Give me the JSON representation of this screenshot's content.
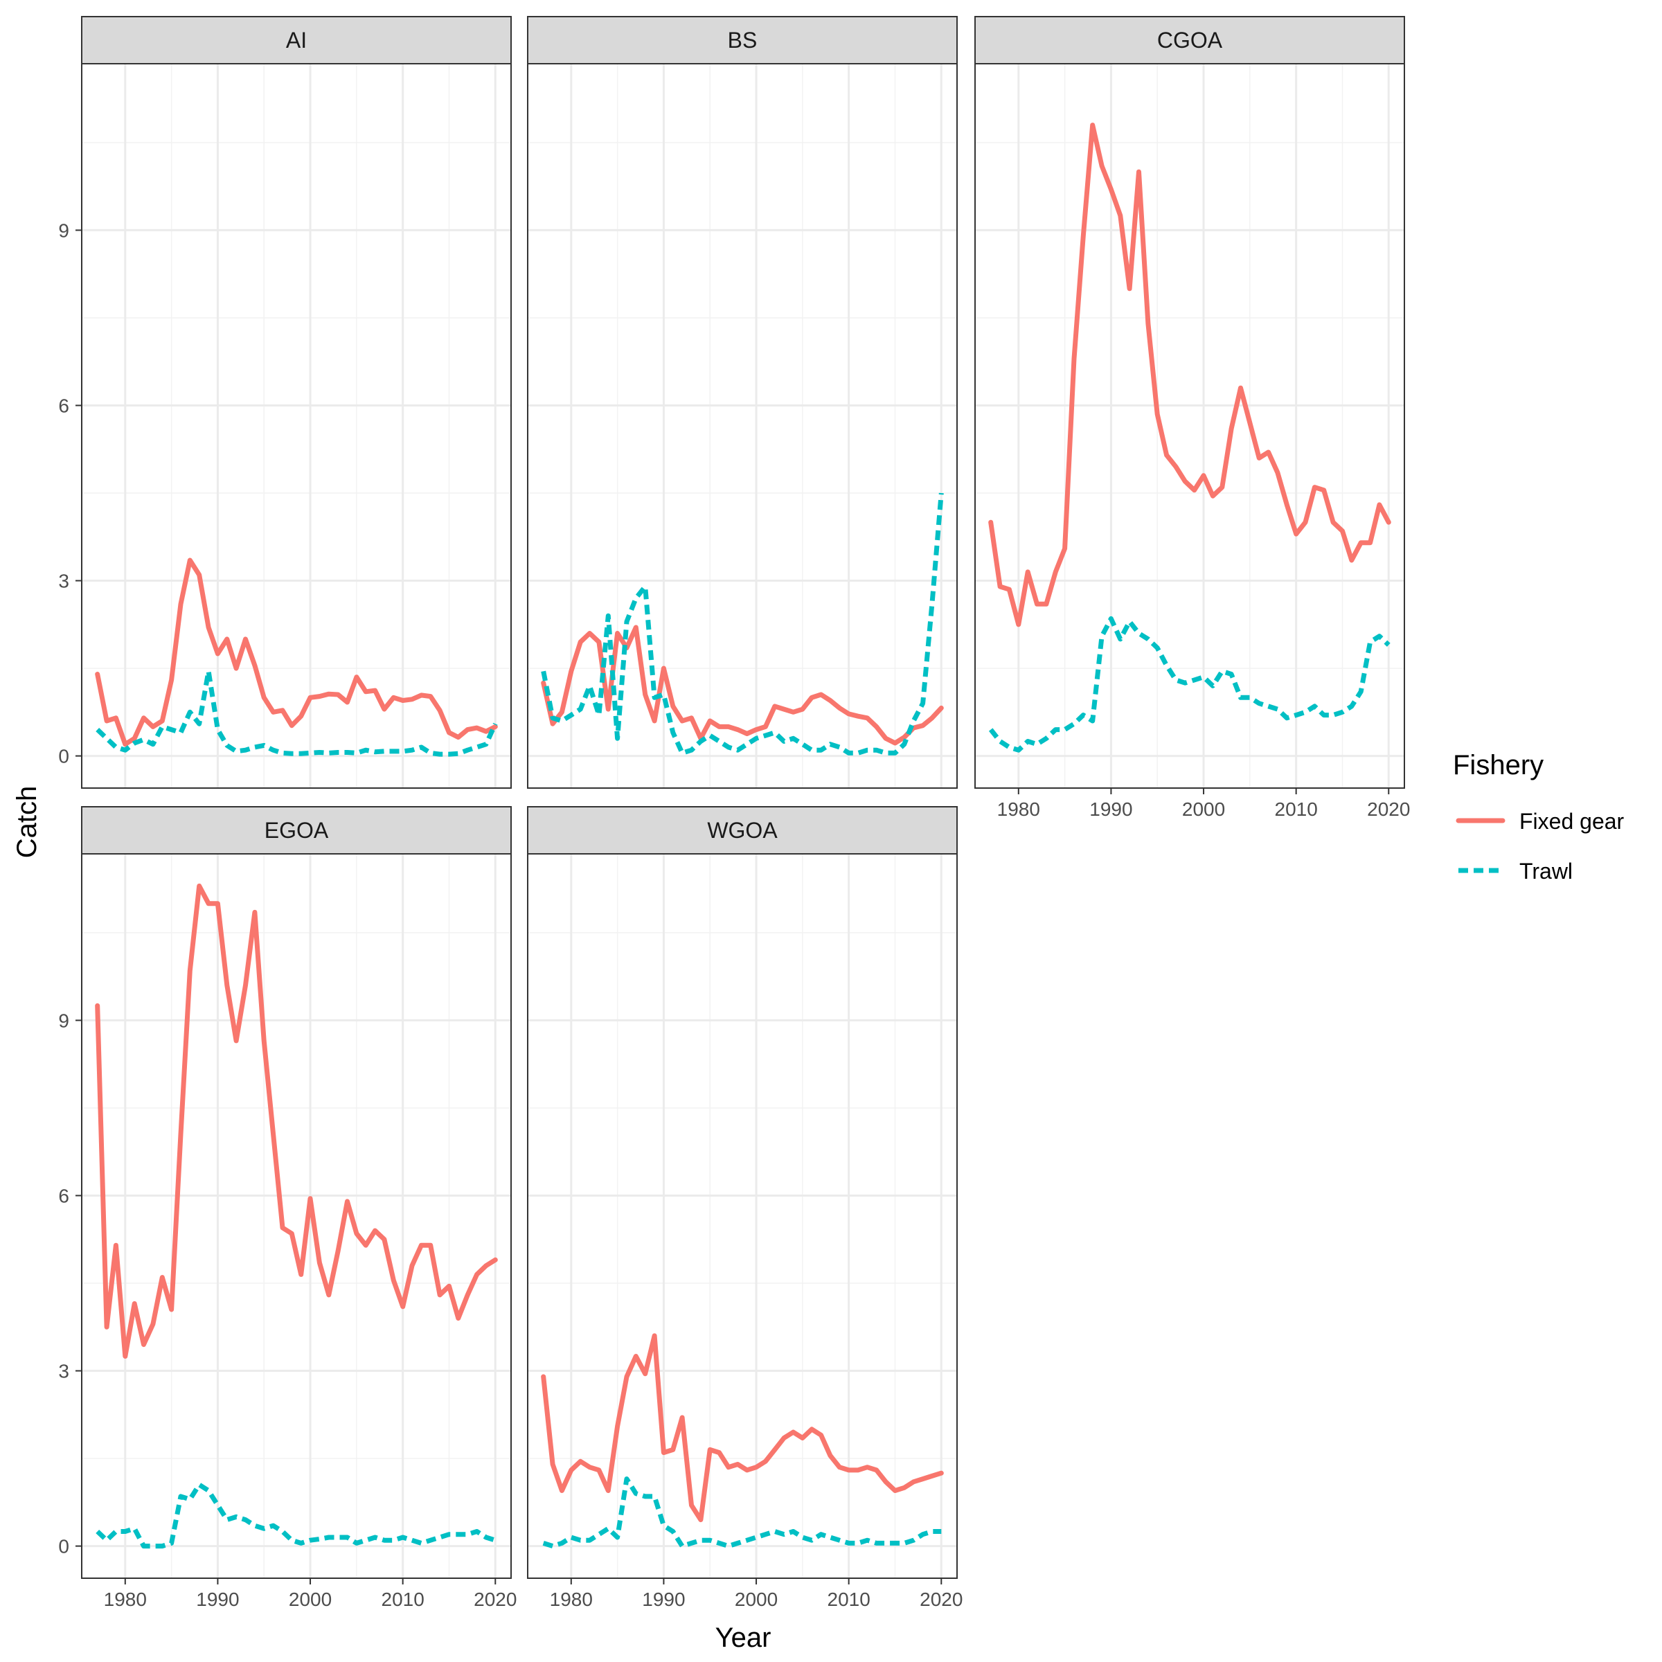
{
  "chart_data": {
    "type": "line",
    "xlabel": "Year",
    "ylabel": "Catch",
    "xlim": [
      1975.3,
      2021.7
    ],
    "ylim": [
      -0.55,
      11.85
    ],
    "x_ticks": [
      1980,
      1990,
      2000,
      2010,
      2020
    ],
    "y_ticks": [
      0,
      3,
      6,
      9
    ],
    "x_tick_labels": [
      "1980",
      "1990",
      "2000",
      "2010",
      "2020"
    ],
    "y_tick_labels": [
      "0",
      "3",
      "6",
      "9"
    ],
    "grid": true,
    "legend": {
      "title": "Fishery",
      "placement": "right",
      "entries": [
        {
          "name": "Fixed gear",
          "color": "#F8766D",
          "dash": "solid"
        },
        {
          "name": "Trawl",
          "color": "#00BFC4",
          "dash": "dashed"
        }
      ]
    },
    "panels": [
      {
        "name": "AI",
        "series": [
          {
            "name": "Fixed gear",
            "x": [
              1977,
              1978,
              1979,
              1980,
              1981,
              1982,
              1983,
              1984,
              1985,
              1986,
              1987,
              1988,
              1989,
              1990,
              1991,
              1992,
              1993,
              1994,
              1995,
              1996,
              1997,
              1998,
              1999,
              2000,
              2001,
              2002,
              2003,
              2004,
              2005,
              2006,
              2007,
              2008,
              2009,
              2010,
              2011,
              2012,
              2013,
              2014,
              2015,
              2016,
              2017,
              2018,
              2019,
              2020
            ],
            "values": [
              1.4,
              0.6,
              0.65,
              0.2,
              0.3,
              0.65,
              0.5,
              0.6,
              1.3,
              2.6,
              3.35,
              3.1,
              2.2,
              1.75,
              2.0,
              1.5,
              2.0,
              1.55,
              1.0,
              0.75,
              0.78,
              0.52,
              0.68,
              1.0,
              1.02,
              1.06,
              1.05,
              0.92,
              1.35,
              1.1,
              1.12,
              0.8,
              1.0,
              0.95,
              0.97,
              1.04,
              1.02,
              0.78,
              0.4,
              0.32,
              0.45,
              0.48,
              0.42,
              0.5
            ]
          },
          {
            "name": "Trawl",
            "x": [
              1977,
              1978,
              1979,
              1980,
              1981,
              1982,
              1983,
              1984,
              1985,
              1986,
              1987,
              1988,
              1989,
              1990,
              1991,
              1992,
              1993,
              1994,
              1995,
              1996,
              1997,
              1998,
              1999,
              2000,
              2001,
              2002,
              2003,
              2004,
              2005,
              2006,
              2007,
              2008,
              2009,
              2010,
              2011,
              2012,
              2013,
              2014,
              2015,
              2016,
              2017,
              2018,
              2019,
              2020
            ],
            "values": [
              0.45,
              0.3,
              0.15,
              0.1,
              0.22,
              0.28,
              0.2,
              0.5,
              0.45,
              0.4,
              0.75,
              0.55,
              1.45,
              0.45,
              0.18,
              0.08,
              0.1,
              0.15,
              0.18,
              0.1,
              0.05,
              0.04,
              0.04,
              0.05,
              0.06,
              0.05,
              0.06,
              0.06,
              0.05,
              0.1,
              0.07,
              0.08,
              0.08,
              0.08,
              0.1,
              0.15,
              0.05,
              0.03,
              0.03,
              0.04,
              0.1,
              0.15,
              0.2,
              0.55
            ]
          }
        ]
      },
      {
        "name": "BS",
        "series": [
          {
            "name": "Fixed gear",
            "x": [
              1977,
              1978,
              1979,
              1980,
              1981,
              1982,
              1983,
              1984,
              1985,
              1986,
              1987,
              1988,
              1989,
              1990,
              1991,
              1992,
              1993,
              1994,
              1995,
              1996,
              1997,
              1998,
              1999,
              2000,
              2001,
              2002,
              2003,
              2004,
              2005,
              2006,
              2007,
              2008,
              2009,
              2010,
              2011,
              2012,
              2013,
              2014,
              2015,
              2016,
              2017,
              2018,
              2019,
              2020
            ],
            "values": [
              1.25,
              0.55,
              0.75,
              1.45,
              1.95,
              2.1,
              1.95,
              0.8,
              2.1,
              1.85,
              2.2,
              1.05,
              0.6,
              1.5,
              0.85,
              0.6,
              0.65,
              0.3,
              0.6,
              0.5,
              0.5,
              0.45,
              0.38,
              0.45,
              0.5,
              0.85,
              0.8,
              0.75,
              0.8,
              1.0,
              1.05,
              0.95,
              0.82,
              0.72,
              0.68,
              0.65,
              0.5,
              0.3,
              0.22,
              0.32,
              0.48,
              0.52,
              0.65,
              0.82
            ]
          },
          {
            "name": "Trawl",
            "x": [
              1977,
              1978,
              1979,
              1980,
              1981,
              1982,
              1983,
              1984,
              1985,
              1986,
              1987,
              1988,
              1989,
              1990,
              1991,
              1992,
              1993,
              1994,
              1995,
              1996,
              1997,
              1998,
              1999,
              2000,
              2001,
              2002,
              2003,
              2004,
              2005,
              2006,
              2007,
              2008,
              2009,
              2010,
              2011,
              2012,
              2013,
              2014,
              2015,
              2016,
              2017,
              2018,
              2019,
              2020
            ],
            "values": [
              1.45,
              0.65,
              0.6,
              0.7,
              0.8,
              1.2,
              0.7,
              2.4,
              0.3,
              2.3,
              2.7,
              2.9,
              1.0,
              1.05,
              0.4,
              0.05,
              0.1,
              0.25,
              0.35,
              0.25,
              0.15,
              0.1,
              0.2,
              0.3,
              0.35,
              0.4,
              0.25,
              0.3,
              0.2,
              0.1,
              0.1,
              0.2,
              0.15,
              0.05,
              0.05,
              0.1,
              0.1,
              0.05,
              0.05,
              0.2,
              0.6,
              0.9,
              2.6,
              4.5
            ]
          }
        ]
      },
      {
        "name": "CGOA",
        "series": [
          {
            "name": "Fixed gear",
            "x": [
              1977,
              1978,
              1979,
              1980,
              1981,
              1982,
              1983,
              1984,
              1985,
              1986,
              1987,
              1988,
              1989,
              1990,
              1991,
              1992,
              1993,
              1994,
              1995,
              1996,
              1997,
              1998,
              1999,
              2000,
              2001,
              2002,
              2003,
              2004,
              2005,
              2006,
              2007,
              2008,
              2009,
              2010,
              2011,
              2012,
              2013,
              2014,
              2015,
              2016,
              2017,
              2018,
              2019,
              2020
            ],
            "values": [
              4.0,
              2.9,
              2.85,
              2.25,
              3.15,
              2.6,
              2.6,
              3.15,
              3.55,
              6.8,
              8.9,
              10.8,
              10.1,
              9.7,
              9.25,
              8.0,
              10.0,
              7.4,
              5.85,
              5.15,
              4.95,
              4.7,
              4.55,
              4.8,
              4.45,
              4.6,
              5.6,
              6.3,
              5.7,
              5.1,
              5.2,
              4.85,
              4.3,
              3.8,
              4.0,
              4.6,
              4.55,
              4.0,
              3.85,
              3.35,
              3.65,
              3.65,
              4.3,
              4.0
            ]
          },
          {
            "name": "Trawl",
            "x": [
              1977,
              1978,
              1979,
              1980,
              1981,
              1982,
              1983,
              1984,
              1985,
              1986,
              1987,
              1988,
              1989,
              1990,
              1991,
              1992,
              1993,
              1994,
              1995,
              1996,
              1997,
              1998,
              1999,
              2000,
              2001,
              2002,
              2003,
              2004,
              2005,
              2006,
              2007,
              2008,
              2009,
              2010,
              2011,
              2012,
              2013,
              2014,
              2015,
              2016,
              2017,
              2018,
              2019,
              2020
            ],
            "values": [
              0.45,
              0.25,
              0.15,
              0.1,
              0.25,
              0.2,
              0.3,
              0.45,
              0.45,
              0.55,
              0.7,
              0.6,
              2.05,
              2.35,
              2.0,
              2.3,
              2.1,
              2.0,
              1.85,
              1.55,
              1.3,
              1.25,
              1.3,
              1.35,
              1.2,
              1.45,
              1.4,
              1.0,
              1.0,
              0.9,
              0.85,
              0.8,
              0.65,
              0.7,
              0.75,
              0.85,
              0.7,
              0.7,
              0.75,
              0.85,
              1.1,
              1.95,
              2.05,
              1.9
            ]
          }
        ]
      },
      {
        "name": "EGOA",
        "series": [
          {
            "name": "Fixed gear",
            "x": [
              1977,
              1978,
              1979,
              1980,
              1981,
              1982,
              1983,
              1984,
              1985,
              1986,
              1987,
              1988,
              1989,
              1990,
              1991,
              1992,
              1993,
              1994,
              1995,
              1996,
              1997,
              1998,
              1999,
              2000,
              2001,
              2002,
              2003,
              2004,
              2005,
              2006,
              2007,
              2008,
              2009,
              2010,
              2011,
              2012,
              2013,
              2014,
              2015,
              2016,
              2017,
              2018,
              2019,
              2020
            ],
            "values": [
              9.25,
              3.75,
              5.15,
              3.25,
              4.15,
              3.45,
              3.8,
              4.6,
              4.05,
              7.05,
              9.85,
              11.3,
              11.0,
              11.0,
              9.6,
              8.65,
              9.6,
              10.85,
              8.65,
              7.05,
              5.45,
              5.35,
              4.65,
              5.95,
              4.85,
              4.3,
              5.05,
              5.9,
              5.35,
              5.15,
              5.4,
              5.25,
              4.55,
              4.1,
              4.8,
              5.15,
              5.15,
              4.3,
              4.45,
              3.9,
              4.3,
              4.65,
              4.8,
              4.9
            ]
          },
          {
            "name": "Trawl",
            "x": [
              1977,
              1978,
              1979,
              1980,
              1981,
              1982,
              1983,
              1984,
              1985,
              1986,
              1987,
              1988,
              1989,
              1990,
              1991,
              1992,
              1993,
              1994,
              1995,
              1996,
              1997,
              1998,
              1999,
              2000,
              2001,
              2002,
              2003,
              2004,
              2005,
              2006,
              2007,
              2008,
              2009,
              2010,
              2011,
              2012,
              2013,
              2014,
              2015,
              2016,
              2017,
              2018,
              2019,
              2020
            ],
            "values": [
              0.25,
              0.1,
              0.25,
              0.25,
              0.3,
              0.0,
              0.0,
              0.0,
              0.05,
              0.85,
              0.8,
              1.05,
              0.95,
              0.7,
              0.45,
              0.5,
              0.45,
              0.35,
              0.3,
              0.35,
              0.25,
              0.1,
              0.05,
              0.1,
              0.12,
              0.15,
              0.15,
              0.15,
              0.05,
              0.1,
              0.15,
              0.1,
              0.1,
              0.15,
              0.1,
              0.05,
              0.1,
              0.15,
              0.2,
              0.2,
              0.2,
              0.25,
              0.15,
              0.1
            ]
          }
        ]
      },
      {
        "name": "WGOA",
        "series": [
          {
            "name": "Fixed gear",
            "x": [
              1977,
              1978,
              1979,
              1980,
              1981,
              1982,
              1983,
              1984,
              1985,
              1986,
              1987,
              1988,
              1989,
              1990,
              1991,
              1992,
              1993,
              1994,
              1995,
              1996,
              1997,
              1998,
              1999,
              2000,
              2001,
              2002,
              2003,
              2004,
              2005,
              2006,
              2007,
              2008,
              2009,
              2010,
              2011,
              2012,
              2013,
              2014,
              2015,
              2016,
              2017,
              2018,
              2019,
              2020
            ],
            "values": [
              2.9,
              1.4,
              0.95,
              1.3,
              1.45,
              1.35,
              1.3,
              0.95,
              2.05,
              2.9,
              3.25,
              2.95,
              3.6,
              1.6,
              1.65,
              2.2,
              0.7,
              0.45,
              1.65,
              1.6,
              1.35,
              1.4,
              1.3,
              1.35,
              1.45,
              1.65,
              1.85,
              1.95,
              1.85,
              2.0,
              1.9,
              1.55,
              1.35,
              1.3,
              1.3,
              1.35,
              1.3,
              1.1,
              0.95,
              1.0,
              1.1,
              1.15,
              1.2,
              1.25
            ]
          },
          {
            "name": "Trawl",
            "x": [
              1977,
              1978,
              1979,
              1980,
              1981,
              1982,
              1983,
              1984,
              1985,
              1986,
              1987,
              1988,
              1989,
              1990,
              1991,
              1992,
              1993,
              1994,
              1995,
              1996,
              1997,
              1998,
              1999,
              2000,
              2001,
              2002,
              2003,
              2004,
              2005,
              2006,
              2007,
              2008,
              2009,
              2010,
              2011,
              2012,
              2013,
              2014,
              2015,
              2016,
              2017,
              2018,
              2019,
              2020
            ],
            "values": [
              0.05,
              0.0,
              0.05,
              0.15,
              0.1,
              0.1,
              0.2,
              0.3,
              0.15,
              1.15,
              0.9,
              0.85,
              0.85,
              0.35,
              0.25,
              0.0,
              0.05,
              0.1,
              0.1,
              0.05,
              0.0,
              0.05,
              0.1,
              0.15,
              0.2,
              0.25,
              0.2,
              0.25,
              0.15,
              0.1,
              0.2,
              0.15,
              0.1,
              0.05,
              0.05,
              0.1,
              0.05,
              0.05,
              0.05,
              0.05,
              0.1,
              0.2,
              0.25,
              0.25
            ]
          }
        ]
      }
    ]
  }
}
